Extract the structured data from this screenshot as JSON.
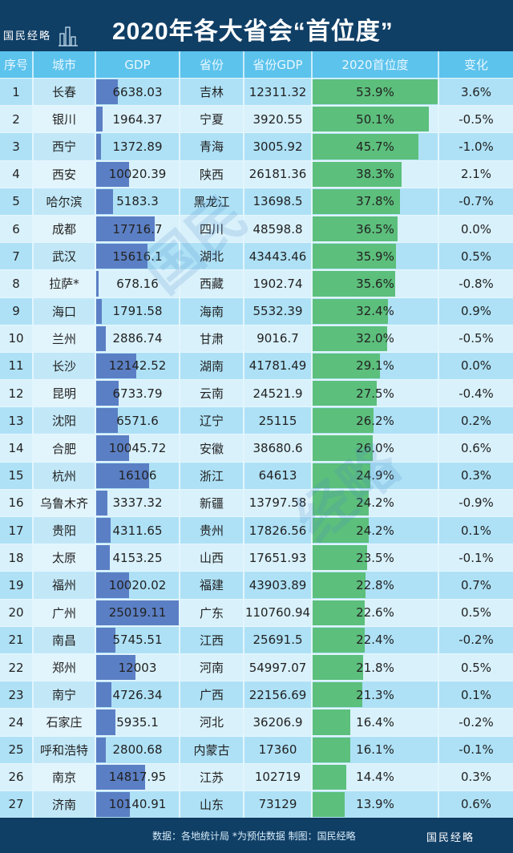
{
  "header": {
    "title": "2020年各大省会“首位度”",
    "logo": "国民经略"
  },
  "columns": [
    "序号",
    "城市",
    "GDP",
    "省份",
    "省份GDP",
    "2020首位度",
    "变化"
  ],
  "rows": [
    {
      "rank": "1",
      "city": "长春",
      "gdp": "6638.03",
      "province": "吉林",
      "pgdp": "12311.32",
      "pct": "53.9%",
      "chg": "3.6%"
    },
    {
      "rank": "2",
      "city": "银川",
      "gdp": "1964.37",
      "province": "宁夏",
      "pgdp": "3920.55",
      "pct": "50.1%",
      "chg": "-0.5%"
    },
    {
      "rank": "3",
      "city": "西宁",
      "gdp": "1372.89",
      "province": "青海",
      "pgdp": "3005.92",
      "pct": "45.7%",
      "chg": "-1.0%"
    },
    {
      "rank": "4",
      "city": "西安",
      "gdp": "10020.39",
      "province": "陕西",
      "pgdp": "26181.36",
      "pct": "38.3%",
      "chg": "2.1%"
    },
    {
      "rank": "5",
      "city": "哈尔滨",
      "gdp": "5183.3",
      "province": "黑龙江",
      "pgdp": "13698.5",
      "pct": "37.8%",
      "chg": "-0.7%"
    },
    {
      "rank": "6",
      "city": "成都",
      "gdp": "17716.7",
      "province": "四川",
      "pgdp": "48598.8",
      "pct": "36.5%",
      "chg": "0.0%"
    },
    {
      "rank": "7",
      "city": "武汉",
      "gdp": "15616.1",
      "province": "湖北",
      "pgdp": "43443.46",
      "pct": "35.9%",
      "chg": "0.5%"
    },
    {
      "rank": "8",
      "city": "拉萨*",
      "gdp": "678.16",
      "province": "西藏",
      "pgdp": "1902.74",
      "pct": "35.6%",
      "chg": "-0.8%"
    },
    {
      "rank": "9",
      "city": "海口",
      "gdp": "1791.58",
      "province": "海南",
      "pgdp": "5532.39",
      "pct": "32.4%",
      "chg": "0.9%"
    },
    {
      "rank": "10",
      "city": "兰州",
      "gdp": "2886.74",
      "province": "甘肃",
      "pgdp": "9016.7",
      "pct": "32.0%",
      "chg": "-0.5%"
    },
    {
      "rank": "11",
      "city": "长沙",
      "gdp": "12142.52",
      "province": "湖南",
      "pgdp": "41781.49",
      "pct": "29.1%",
      "chg": "0.0%"
    },
    {
      "rank": "12",
      "city": "昆明",
      "gdp": "6733.79",
      "province": "云南",
      "pgdp": "24521.9",
      "pct": "27.5%",
      "chg": "-0.4%"
    },
    {
      "rank": "13",
      "city": "沈阳",
      "gdp": "6571.6",
      "province": "辽宁",
      "pgdp": "25115",
      "pct": "26.2%",
      "chg": "0.2%"
    },
    {
      "rank": "14",
      "city": "合肥",
      "gdp": "10045.72",
      "province": "安徽",
      "pgdp": "38680.6",
      "pct": "26.0%",
      "chg": "0.6%"
    },
    {
      "rank": "15",
      "city": "杭州",
      "gdp": "16106",
      "province": "浙江",
      "pgdp": "64613",
      "pct": "24.9%",
      "chg": "0.3%"
    },
    {
      "rank": "16",
      "city": "乌鲁木齐",
      "gdp": "3337.32",
      "province": "新疆",
      "pgdp": "13797.58",
      "pct": "24.2%",
      "chg": "-0.9%"
    },
    {
      "rank": "17",
      "city": "贵阳",
      "gdp": "4311.65",
      "province": "贵州",
      "pgdp": "17826.56",
      "pct": "24.2%",
      "chg": "0.1%"
    },
    {
      "rank": "18",
      "city": "太原",
      "gdp": "4153.25",
      "province": "山西",
      "pgdp": "17651.93",
      "pct": "23.5%",
      "chg": "-0.1%"
    },
    {
      "rank": "19",
      "city": "福州",
      "gdp": "10020.02",
      "province": "福建",
      "pgdp": "43903.89",
      "pct": "22.8%",
      "chg": "0.7%"
    },
    {
      "rank": "20",
      "city": "广州",
      "gdp": "25019.11",
      "province": "广东",
      "pgdp": "110760.94",
      "pct": "22.6%",
      "chg": "0.5%"
    },
    {
      "rank": "21",
      "city": "南昌",
      "gdp": "5745.51",
      "province": "江西",
      "pgdp": "25691.5",
      "pct": "22.4%",
      "chg": "-0.2%"
    },
    {
      "rank": "22",
      "city": "郑州",
      "gdp": "12003",
      "province": "河南",
      "pgdp": "54997.07",
      "pct": "21.8%",
      "chg": "0.5%"
    },
    {
      "rank": "23",
      "city": "南宁",
      "gdp": "4726.34",
      "province": "广西",
      "pgdp": "22156.69",
      "pct": "21.3%",
      "chg": "0.1%"
    },
    {
      "rank": "24",
      "city": "石家庄",
      "gdp": "5935.1",
      "province": "河北",
      "pgdp": "36206.9",
      "pct": "16.4%",
      "chg": "-0.2%"
    },
    {
      "rank": "25",
      "city": "呼和浩特",
      "gdp": "2800.68",
      "province": "内蒙古",
      "pgdp": "17360",
      "pct": "16.1%",
      "chg": "-0.1%"
    },
    {
      "rank": "26",
      "city": "南京",
      "gdp": "14817.95",
      "province": "江苏",
      "pgdp": "102719",
      "pct": "14.4%",
      "chg": "0.3%"
    },
    {
      "rank": "27",
      "city": "济南",
      "gdp": "10140.91",
      "province": "山东",
      "pgdp": "73129",
      "pct": "13.9%",
      "chg": "0.6%"
    }
  ],
  "footer": {
    "source": "数据：各地统计局 *为预估数据  制图：国民经略",
    "logo": "国民经略"
  },
  "colors": {
    "header_bg": "#103f66",
    "col_header_bg": "#5cc3ec",
    "gdp_bar": "#5b7fc4",
    "pct_bar": "#5cbf7c",
    "row_odd": "#aee1f6",
    "row_even": "#d9f1fb"
  },
  "chart_data": {
    "type": "table",
    "title": "2020年各大省会“首位度”",
    "columns": [
      "序号",
      "城市",
      "GDP",
      "省份",
      "省份GDP",
      "2020首位度",
      "变化"
    ],
    "categories": [
      "长春",
      "银川",
      "西宁",
      "西安",
      "哈尔滨",
      "成都",
      "武汉",
      "拉萨*",
      "海口",
      "兰州",
      "长沙",
      "昆明",
      "沈阳",
      "合肥",
      "杭州",
      "乌鲁木齐",
      "贵阳",
      "太原",
      "福州",
      "广州",
      "南昌",
      "郑州",
      "南宁",
      "石家庄",
      "呼和浩特",
      "南京",
      "济南"
    ],
    "series": [
      {
        "name": "GDP",
        "values": [
          6638.03,
          1964.37,
          1372.89,
          10020.39,
          5183.3,
          17716.7,
          15616.1,
          678.16,
          1791.58,
          2886.74,
          12142.52,
          6733.79,
          6571.6,
          10045.72,
          16106,
          3337.32,
          4311.65,
          4153.25,
          10020.02,
          25019.11,
          5745.51,
          12003,
          4726.34,
          5935.1,
          2800.68,
          14817.95,
          10140.91
        ]
      },
      {
        "name": "省份GDP",
        "values": [
          12311.32,
          3920.55,
          3005.92,
          26181.36,
          13698.5,
          48598.8,
          43443.46,
          1902.74,
          5532.39,
          9016.7,
          41781.49,
          24521.9,
          25115,
          38680.6,
          64613,
          13797.58,
          17826.56,
          17651.93,
          43903.89,
          110760.94,
          25691.5,
          54997.07,
          22156.69,
          36206.9,
          17360,
          102719,
          73129
        ]
      },
      {
        "name": "2020首位度(%)",
        "values": [
          53.9,
          50.1,
          45.7,
          38.3,
          37.8,
          36.5,
          35.9,
          35.6,
          32.4,
          32.0,
          29.1,
          27.5,
          26.2,
          26.0,
          24.9,
          24.2,
          24.2,
          23.5,
          22.8,
          22.6,
          22.4,
          21.8,
          21.3,
          16.4,
          16.1,
          14.4,
          13.9
        ]
      },
      {
        "name": "变化(%)",
        "values": [
          3.6,
          -0.5,
          -1.0,
          2.1,
          -0.7,
          0.0,
          0.5,
          -0.8,
          0.9,
          -0.5,
          0.0,
          -0.4,
          0.2,
          0.6,
          0.3,
          -0.9,
          0.1,
          -0.1,
          0.7,
          0.5,
          -0.2,
          0.5,
          0.1,
          -0.2,
          -0.1,
          0.3,
          0.6
        ]
      }
    ],
    "annotations": [
      "数据：各地统计局 *为预估数据  制图：国民经略"
    ]
  }
}
